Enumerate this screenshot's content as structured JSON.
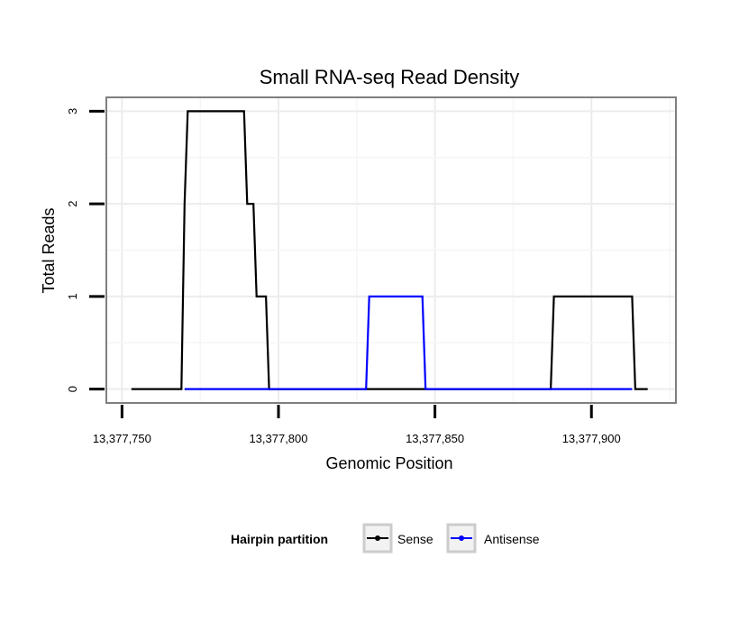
{
  "chart_data": {
    "type": "line",
    "title": "Small RNA-seq Read Density",
    "xlabel": "Genomic Position",
    "ylabel": "Total Reads",
    "xlim": [
      13377745,
      13377927
    ],
    "ylim": [
      -0.15,
      3.15
    ],
    "x_ticks": [
      13377750,
      13377800,
      13377850,
      13377900
    ],
    "x_tick_labels": [
      "13,377,750",
      "13,377,800",
      "13,377,850",
      "13,377,900"
    ],
    "y_ticks": [
      0,
      1,
      2,
      3
    ],
    "y_tick_labels": [
      "0",
      "1",
      "2",
      "3"
    ],
    "grid": true,
    "legend": {
      "title": "Hairpin partition",
      "position": "bottom",
      "entries": [
        "Sense",
        "Antisense"
      ]
    },
    "series": [
      {
        "name": "Sense",
        "color": "#000000",
        "x": [
          13377753,
          13377769,
          13377770,
          13377771,
          13377789,
          13377790,
          13377792,
          13377793,
          13377796,
          13377797,
          13377887,
          13377888,
          13377913,
          13377914,
          13377918
        ],
        "y": [
          0,
          0,
          2,
          3,
          3,
          2,
          2,
          1,
          1,
          0,
          0,
          1,
          1,
          0,
          0
        ]
      },
      {
        "name": "Antisense",
        "color": "#0000ff",
        "x": [
          13377770,
          13377828,
          13377829,
          13377846,
          13377847,
          13377913
        ],
        "y": [
          0,
          0,
          1,
          1,
          0,
          0
        ]
      }
    ]
  }
}
